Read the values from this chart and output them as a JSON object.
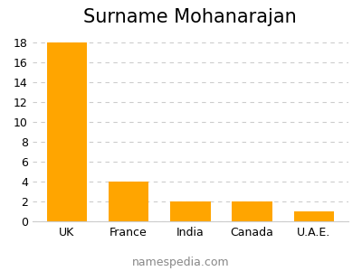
{
  "title": "Surname Mohanarajan",
  "categories": [
    "UK",
    "France",
    "India",
    "Canada",
    "U.A.E."
  ],
  "values": [
    18,
    4,
    2,
    2,
    1
  ],
  "bar_color": "#FFA500",
  "background_color": "#ffffff",
  "ylim": [
    0,
    19
  ],
  "yticks": [
    0,
    2,
    4,
    6,
    8,
    10,
    12,
    14,
    16,
    18
  ],
  "grid_color": "#cccccc",
  "title_fontsize": 15,
  "tick_fontsize": 9,
  "footer_text": "namespedia.com",
  "footer_fontsize": 9,
  "footer_color": "#888888"
}
